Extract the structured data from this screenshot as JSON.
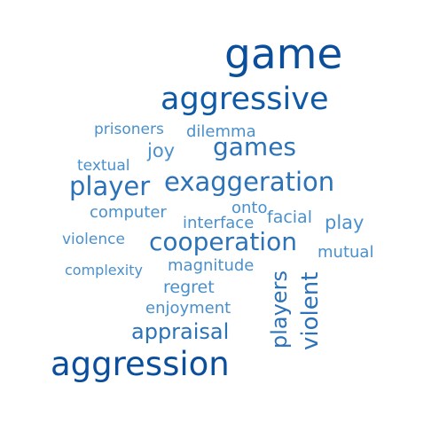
{
  "word_cloud": {
    "words": [
      {
        "text": "game",
        "weight": 100,
        "color": "#0b4f9c"
      },
      {
        "text": "aggressive",
        "weight": 70,
        "color": "#0e5aa7"
      },
      {
        "text": "aggression",
        "weight": 78,
        "color": "#0b4f9c"
      },
      {
        "text": "exaggeration",
        "weight": 56,
        "color": "#2b72b8"
      },
      {
        "text": "player",
        "weight": 56,
        "color": "#2b72b8"
      },
      {
        "text": "cooperation",
        "weight": 55,
        "color": "#2b72b8"
      },
      {
        "text": "games",
        "weight": 52,
        "color": "#2b72b8"
      },
      {
        "text": "violent",
        "weight": 52,
        "color": "#2b72b8"
      },
      {
        "text": "players",
        "weight": 48,
        "color": "#2b72b8"
      },
      {
        "text": "appraisal",
        "weight": 46,
        "color": "#2b72b8"
      },
      {
        "text": "play",
        "weight": 36,
        "color": "#4a90cc"
      },
      {
        "text": "joy",
        "weight": 36,
        "color": "#4a90cc"
      },
      {
        "text": "regret",
        "weight": 35,
        "color": "#4a90cc"
      },
      {
        "text": "facial",
        "weight": 34,
        "color": "#4a90cc"
      },
      {
        "text": "dilemma",
        "weight": 33,
        "color": "#4a90cc"
      },
      {
        "text": "enjoyment",
        "weight": 33,
        "color": "#4a90cc"
      },
      {
        "text": "magnitude",
        "weight": 33,
        "color": "#4a90cc"
      },
      {
        "text": "mutual",
        "weight": 33,
        "color": "#4a90cc"
      },
      {
        "text": "onto",
        "weight": 33,
        "color": "#4a90cc"
      },
      {
        "text": "interface",
        "weight": 33,
        "color": "#4a90cc"
      },
      {
        "text": "computer",
        "weight": 33,
        "color": "#4a90cc"
      },
      {
        "text": "textual",
        "weight": 32,
        "color": "#4a90cc"
      },
      {
        "text": "prisoners",
        "weight": 32,
        "color": "#4a90cc"
      },
      {
        "text": "violence",
        "weight": 32,
        "color": "#4a90cc"
      },
      {
        "text": "complexity",
        "weight": 31,
        "color": "#4a90cc"
      }
    ]
  }
}
